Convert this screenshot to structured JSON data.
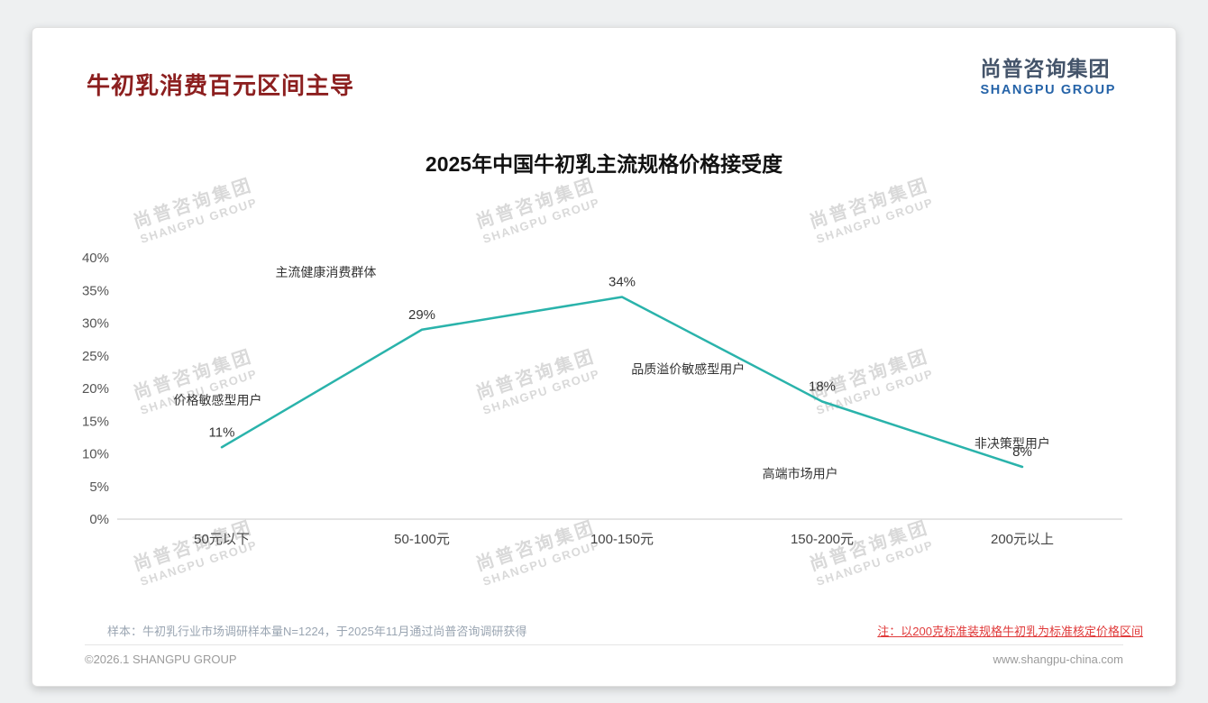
{
  "page": {
    "title": "牛初乳消费百元区间主导",
    "logo": {
      "cn": "尚普咨询集团",
      "en": "SHANGPU GROUP"
    },
    "watermark": {
      "cn": "尚普咨询集团",
      "en": "SHANGPU GROUP"
    },
    "footnote_sample": "样本：牛初乳行业市场调研样本量N=1224，于2025年11月通过尚普咨询调研获得",
    "footnote_note": "注：以200克标准装规格牛初乳为标准核定价格区间",
    "footer_left": "©2026.1 SHANGPU GROUP",
    "footer_right": "www.shangpu-china.com",
    "colors": {
      "accent_title": "#8c1f1f",
      "line": "#2ab3ab",
      "note_red": "#e03a3a",
      "logo_blue": "#2563a8"
    }
  },
  "chart_data": {
    "type": "line",
    "title": "2025年中国牛初乳主流规格价格接受度",
    "categories": [
      "50元以下",
      "50-100元",
      "100-150元",
      "150-200元",
      "200元以上"
    ],
    "values": [
      11,
      29,
      34,
      18,
      8
    ],
    "data_labels": [
      "11%",
      "29%",
      "34%",
      "18%",
      "8%"
    ],
    "xlabel": "",
    "ylabel": "",
    "ylim": [
      0,
      40
    ],
    "y_tick_step": 5,
    "y_tick_labels": [
      "0%",
      "5%",
      "10%",
      "15%",
      "20%",
      "25%",
      "30%",
      "35%",
      "40%"
    ],
    "grid": false,
    "legend": "none",
    "line_color": "#2ab3ab",
    "annotations": [
      {
        "text": "主流健康消费群体",
        "x": 0.52,
        "y": 37.8
      },
      {
        "text": "价格敏感型用户",
        "x": -0.02,
        "y": 18.2
      },
      {
        "text": "品质溢价敏感型用户",
        "x": 2.33,
        "y": 23.0
      },
      {
        "text": "高端市场用户",
        "x": 2.89,
        "y": 7.0
      },
      {
        "text": "非决策型用户",
        "x": 3.95,
        "y": 11.6
      }
    ]
  }
}
